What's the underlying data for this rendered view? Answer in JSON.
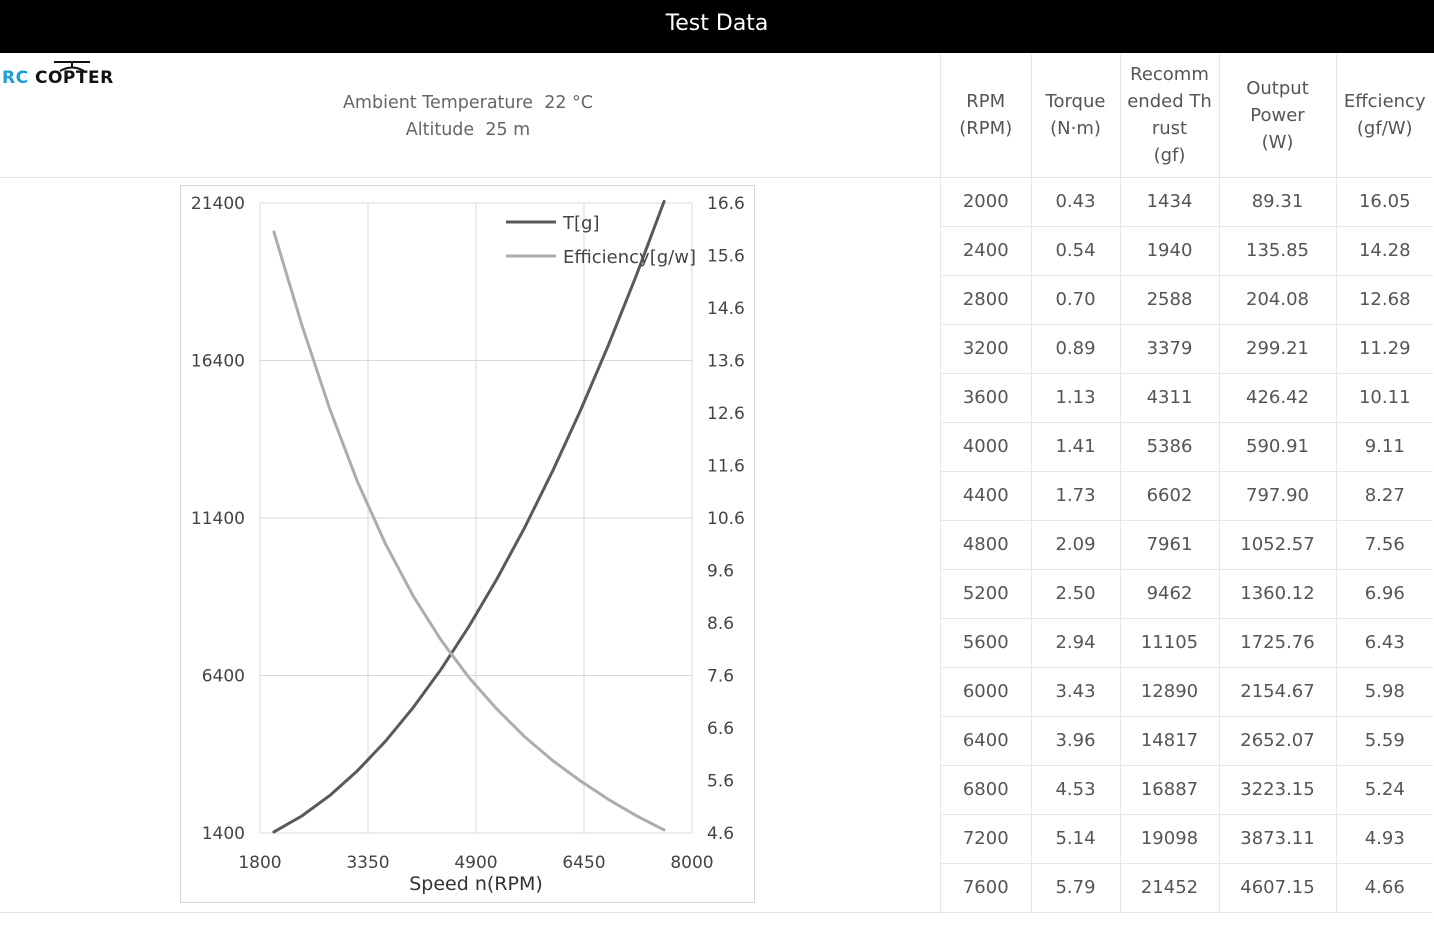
{
  "page": {
    "title": "Test Data"
  },
  "logo": {
    "rc": "RC",
    "copter": "COPTER"
  },
  "conditions": {
    "ambient_label": "Ambient Temperature",
    "ambient_value": "22 °C",
    "altitude_label": "Altitude",
    "altitude_value": "25 m"
  },
  "table": {
    "headers": [
      {
        "label": "RPM\n(RPM)",
        "width": 90
      },
      {
        "label": "Torque\n(N·m)",
        "width": 89
      },
      {
        "label": "Recomm\nended Th\nrust\n(gf)",
        "width": 99
      },
      {
        "label": "Output\nPower\n(W)",
        "width": 117
      },
      {
        "label": "Effciency\n(gf/W)",
        "width": 97
      }
    ],
    "rows": [
      [
        "2000",
        "0.43",
        "1434",
        "89.31",
        "16.05"
      ],
      [
        "2400",
        "0.54",
        "1940",
        "135.85",
        "14.28"
      ],
      [
        "2800",
        "0.70",
        "2588",
        "204.08",
        "12.68"
      ],
      [
        "3200",
        "0.89",
        "3379",
        "299.21",
        "11.29"
      ],
      [
        "3600",
        "1.13",
        "4311",
        "426.42",
        "10.11"
      ],
      [
        "4000",
        "1.41",
        "5386",
        "590.91",
        "9.11"
      ],
      [
        "4400",
        "1.73",
        "6602",
        "797.90",
        "8.27"
      ],
      [
        "4800",
        "2.09",
        "7961",
        "1052.57",
        "7.56"
      ],
      [
        "5200",
        "2.50",
        "9462",
        "1360.12",
        "6.96"
      ],
      [
        "5600",
        "2.94",
        "11105",
        "1725.76",
        "6.43"
      ],
      [
        "6000",
        "3.43",
        "12890",
        "2154.67",
        "5.98"
      ],
      [
        "6400",
        "3.96",
        "14817",
        "2652.07",
        "5.59"
      ],
      [
        "6800",
        "4.53",
        "16887",
        "3223.15",
        "5.24"
      ],
      [
        "7200",
        "5.14",
        "19098",
        "3873.11",
        "4.93"
      ],
      [
        "7600",
        "5.79",
        "21452",
        "4607.15",
        "4.66"
      ]
    ]
  },
  "chart_data": {
    "type": "line",
    "xlabel": "Speed n(RPM)",
    "x_ticks": [
      1800,
      3350,
      4900,
      6450,
      8000
    ],
    "y_left_ticks": [
      1400,
      6400,
      11400,
      16400,
      21400
    ],
    "y_right_ticks": [
      4.6,
      5.6,
      6.6,
      7.6,
      8.6,
      9.6,
      10.6,
      11.6,
      12.6,
      13.6,
      14.6,
      15.6,
      16.6
    ],
    "xlim": [
      1800,
      8000
    ],
    "ylim_left": [
      1400,
      21400
    ],
    "ylim_right": [
      4.6,
      16.6
    ],
    "grid": true,
    "legend_position": "top-right",
    "x": [
      2000,
      2400,
      2800,
      3200,
      3600,
      4000,
      4400,
      4800,
      5200,
      5600,
      6000,
      6400,
      6800,
      7200,
      7600
    ],
    "series": [
      {
        "name": "T[g]",
        "axis": "left",
        "color": "#595959",
        "values": [
          1434,
          1940,
          2588,
          3379,
          4311,
          5386,
          6602,
          7961,
          9462,
          11105,
          12890,
          14817,
          16887,
          19098,
          21452
        ]
      },
      {
        "name": "Efficiency[g/w]",
        "axis": "right",
        "color": "#adadad",
        "values": [
          16.05,
          14.28,
          12.68,
          11.29,
          10.11,
          9.11,
          8.27,
          7.56,
          6.96,
          6.43,
          5.98,
          5.59,
          5.24,
          4.93,
          4.66
        ]
      }
    ]
  }
}
